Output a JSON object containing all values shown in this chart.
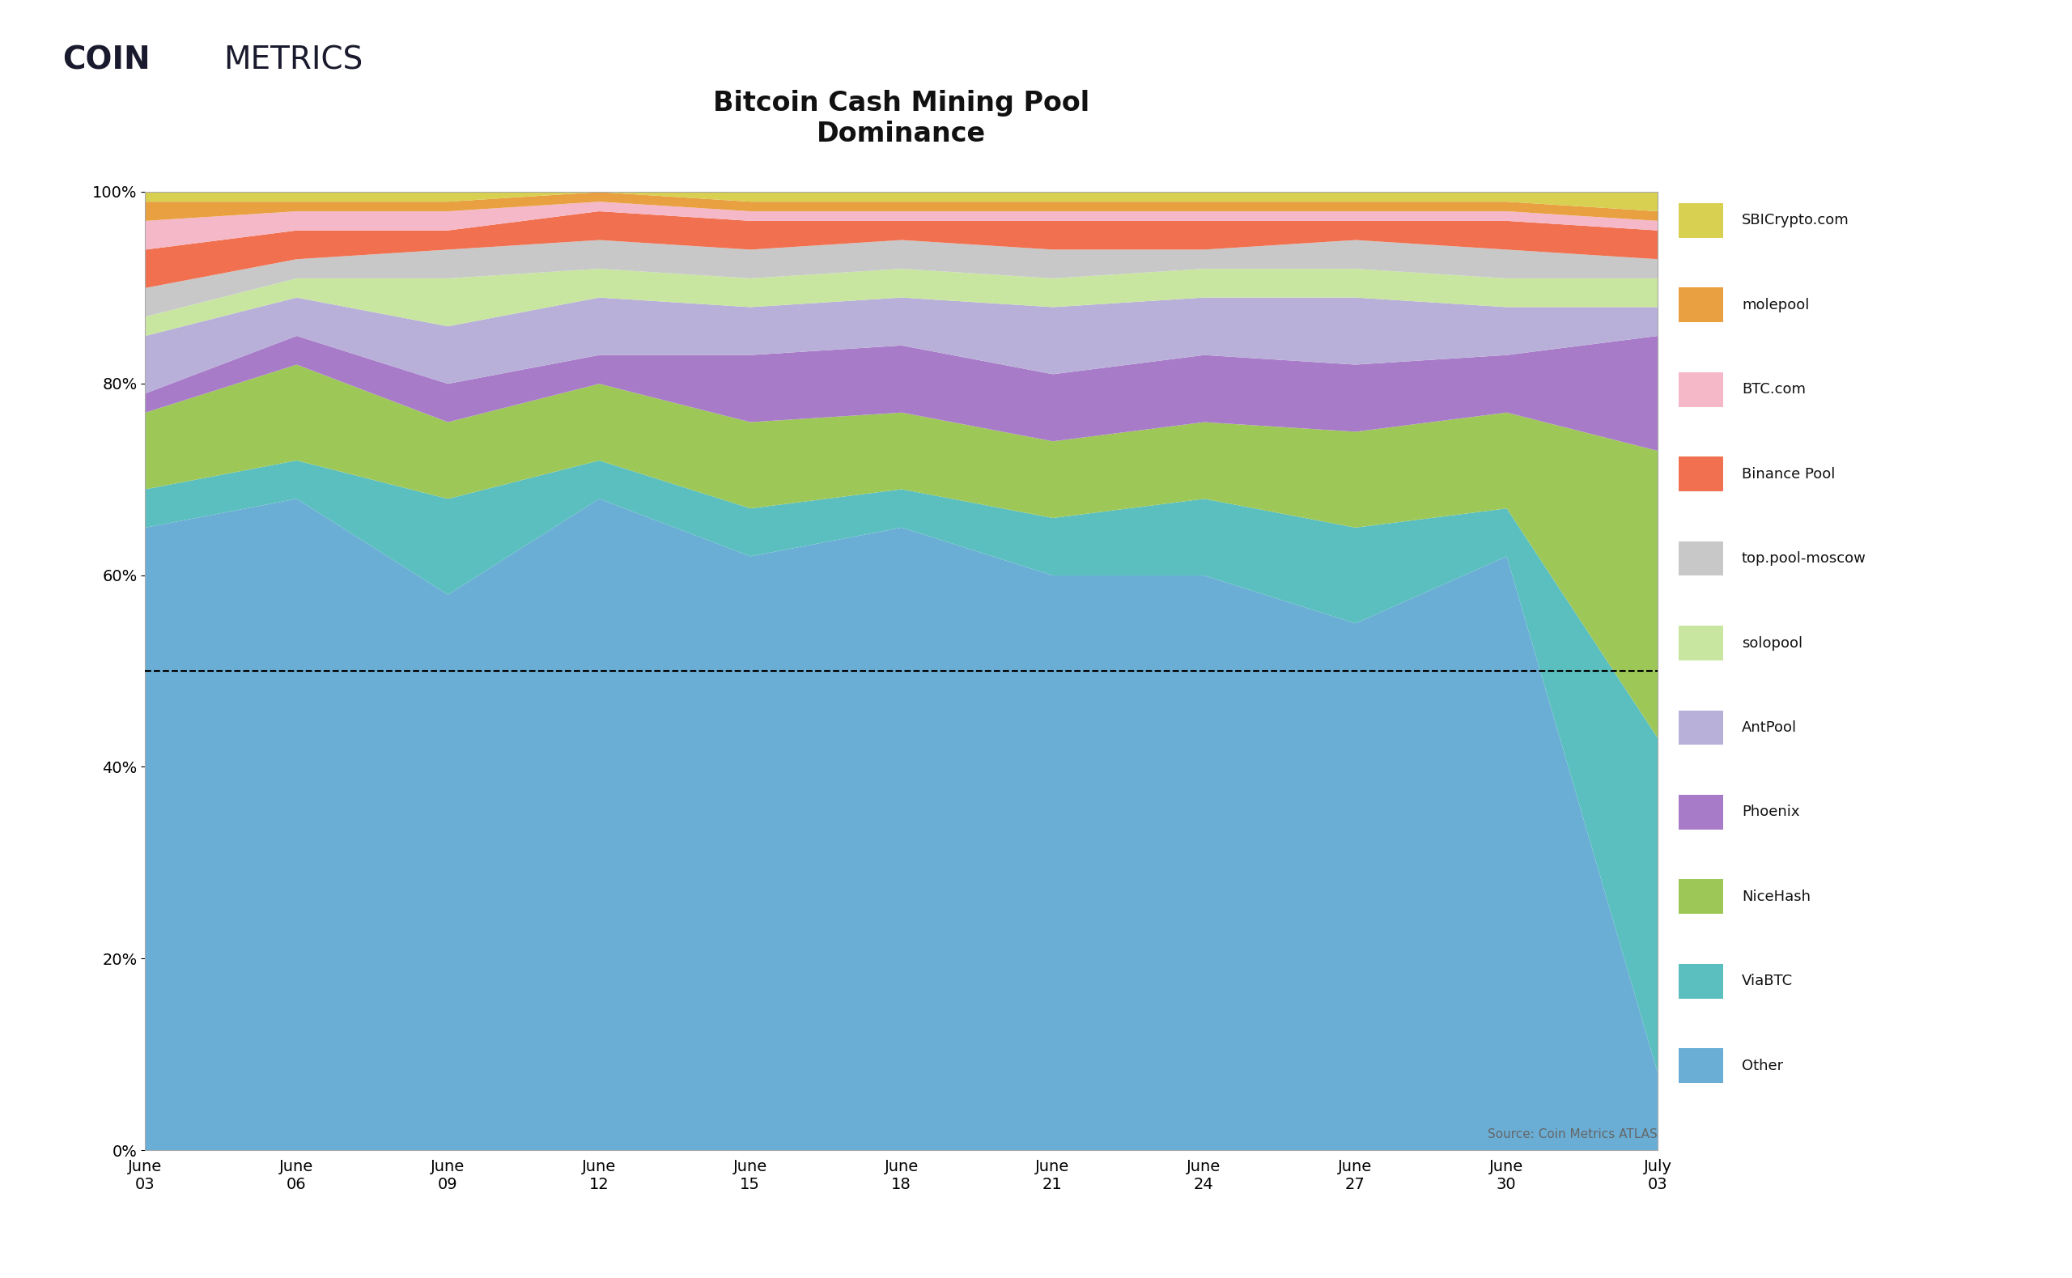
{
  "title": "Bitcoin Cash Mining Pool\nDominance",
  "source_text": "Source: Coin Metrics ATLAS",
  "x_labels": [
    "June\n03",
    "June\n06",
    "June\n09",
    "June\n12",
    "June\n15",
    "June\n18",
    "June\n21",
    "June\n24",
    "June\n27",
    "June\n30",
    "July\n03"
  ],
  "x_positions": [
    0,
    3,
    6,
    9,
    12,
    15,
    18,
    21,
    24,
    27,
    30
  ],
  "dashed_line_y": 0.5,
  "layers": [
    {
      "name": "Other",
      "color": "#6aaed6",
      "values": [
        0.65,
        0.68,
        0.58,
        0.68,
        0.62,
        0.65,
        0.6,
        0.6,
        0.55,
        0.62,
        0.08
      ]
    },
    {
      "name": "ViaBTC",
      "color": "#5bbfbf",
      "values": [
        0.04,
        0.04,
        0.1,
        0.04,
        0.05,
        0.04,
        0.06,
        0.08,
        0.1,
        0.05,
        0.35
      ]
    },
    {
      "name": "NiceHash",
      "color": "#9dc857",
      "values": [
        0.08,
        0.1,
        0.08,
        0.08,
        0.09,
        0.08,
        0.08,
        0.08,
        0.1,
        0.1,
        0.3
      ]
    },
    {
      "name": "Phoenix",
      "color": "#a87bc9",
      "values": [
        0.02,
        0.03,
        0.04,
        0.03,
        0.07,
        0.07,
        0.07,
        0.07,
        0.07,
        0.06,
        0.12
      ]
    },
    {
      "name": "AntPool",
      "color": "#b8b0d8",
      "values": [
        0.06,
        0.04,
        0.06,
        0.06,
        0.05,
        0.05,
        0.07,
        0.06,
        0.07,
        0.05,
        0.03
      ]
    },
    {
      "name": "solopool",
      "color": "#c8e6a0",
      "values": [
        0.02,
        0.02,
        0.05,
        0.03,
        0.03,
        0.03,
        0.03,
        0.03,
        0.03,
        0.03,
        0.03
      ]
    },
    {
      "name": "top.pool-moscow",
      "color": "#c8c8c8",
      "values": [
        0.03,
        0.02,
        0.03,
        0.03,
        0.03,
        0.03,
        0.03,
        0.02,
        0.03,
        0.03,
        0.02
      ]
    },
    {
      "name": "Binance Pool",
      "color": "#f07050",
      "values": [
        0.04,
        0.03,
        0.02,
        0.03,
        0.03,
        0.02,
        0.03,
        0.03,
        0.02,
        0.03,
        0.03
      ]
    },
    {
      "name": "BTC.com",
      "color": "#f5b8c8",
      "values": [
        0.03,
        0.02,
        0.02,
        0.01,
        0.01,
        0.01,
        0.01,
        0.01,
        0.01,
        0.01,
        0.01
      ]
    },
    {
      "name": "molepool",
      "color": "#e8a040",
      "values": [
        0.02,
        0.01,
        0.01,
        0.01,
        0.01,
        0.01,
        0.01,
        0.01,
        0.01,
        0.01,
        0.01
      ]
    },
    {
      "name": "SBICrypto.com",
      "color": "#d8d050",
      "values": [
        0.01,
        0.01,
        0.01,
        0.0,
        0.01,
        0.01,
        0.01,
        0.01,
        0.01,
        0.01,
        0.02
      ]
    }
  ]
}
